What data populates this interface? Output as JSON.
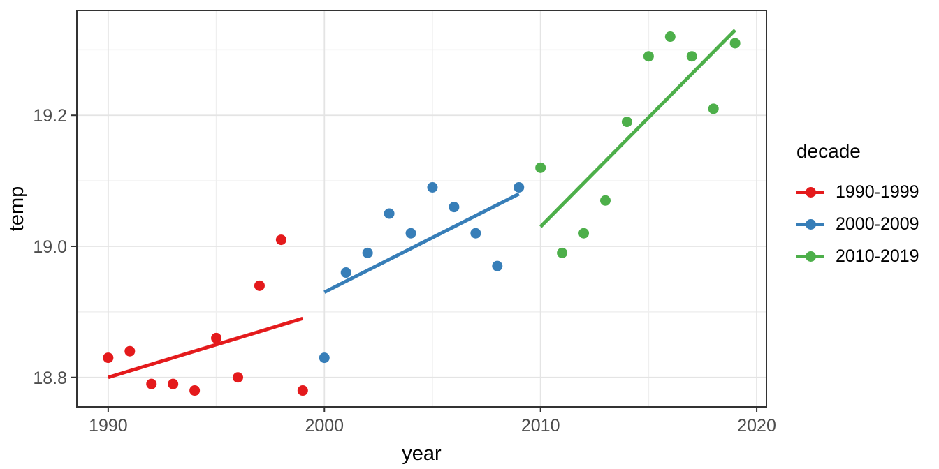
{
  "chart_data": {
    "type": "scatter",
    "title": "",
    "xlabel": "year",
    "ylabel": "temp",
    "grid": true,
    "legend_position": "right",
    "xlim": [
      1988.55,
      2020.45
    ],
    "ylim": [
      18.755,
      19.36
    ],
    "x_tick_values": [
      1990,
      2000,
      2010,
      2020
    ],
    "x_tick_labels": [
      "1990",
      "2000",
      "2010",
      "2020"
    ],
    "x_minor_values": [
      1995,
      2005,
      2015
    ],
    "y_tick_values": [
      18.8,
      19.0,
      19.2
    ],
    "y_tick_labels": [
      "18.8",
      "19.0",
      "19.2"
    ],
    "y_minor_values": [
      18.9,
      19.1,
      19.3
    ],
    "point_radius": 7.5,
    "trend_line_width": 5,
    "colors": {
      "major_grid": "#e4e4e4",
      "minor_grid": "#efefef",
      "panel_border": "#333333",
      "tick_mark": "#333333",
      "tick_label": "#4d4d4d",
      "axis_title": "#000000"
    },
    "series": [
      {
        "name": "1990-1999",
        "color": "#e41a1c",
        "x": [
          1990,
          1991,
          1992,
          1993,
          1994,
          1995,
          1996,
          1997,
          1998,
          1999
        ],
        "y": [
          18.83,
          18.84,
          18.79,
          18.79,
          18.78,
          18.86,
          18.8,
          18.94,
          19.01,
          18.78
        ],
        "trend": {
          "x1": 1990,
          "y1": 18.8,
          "x2": 1999,
          "y2": 18.89
        }
      },
      {
        "name": "2000-2009",
        "color": "#377eb8",
        "x": [
          2000,
          2001,
          2002,
          2003,
          2004,
          2005,
          2006,
          2007,
          2008,
          2009
        ],
        "y": [
          18.83,
          18.96,
          18.99,
          19.05,
          19.02,
          19.09,
          19.06,
          19.02,
          18.97,
          19.09
        ],
        "trend": {
          "x1": 2000,
          "y1": 18.93,
          "x2": 2009,
          "y2": 19.08
        }
      },
      {
        "name": "2010-2019",
        "color": "#4daf4a",
        "x": [
          2010,
          2011,
          2012,
          2013,
          2014,
          2015,
          2016,
          2017,
          2018,
          2019
        ],
        "y": [
          19.12,
          18.99,
          19.02,
          19.07,
          19.19,
          19.29,
          19.32,
          19.29,
          19.21,
          19.31
        ],
        "trend": {
          "x1": 2010,
          "y1": 19.03,
          "x2": 2019,
          "y2": 19.33
        }
      }
    ],
    "legend": {
      "title": "decade",
      "items": [
        {
          "label": "1990-1999"
        },
        {
          "label": "2000-2009"
        },
        {
          "label": "2010-2019"
        }
      ]
    }
  }
}
